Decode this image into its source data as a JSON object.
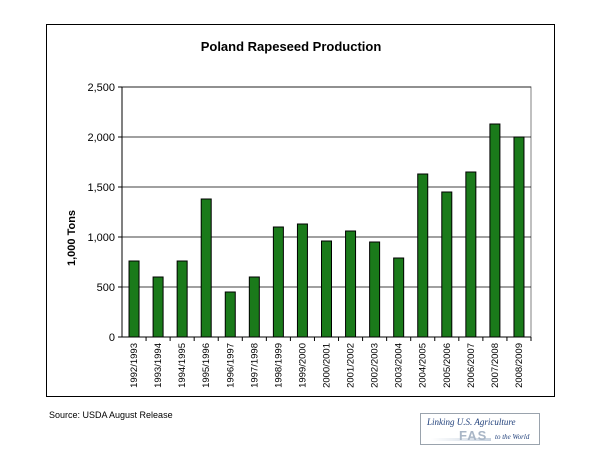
{
  "chart_data": {
    "type": "bar",
    "title": "Poland Rapeseed Production",
    "xlabel": "",
    "ylabel": "1,000 Tons",
    "ylim": [
      0,
      2500
    ],
    "yticks": [
      0,
      500,
      1000,
      1500,
      2000,
      2500
    ],
    "ytick_labels": [
      "0",
      "500",
      "1,000",
      "1,500",
      "2,000",
      "2,500"
    ],
    "grid": true,
    "legend": "none",
    "bar_color": "#1a7a1a",
    "categories": [
      "1992/1993",
      "1993/1994",
      "1994/1995",
      "1995/1996",
      "1996/1997",
      "1997/1998",
      "1998/1999",
      "1999/2000",
      "2000/2001",
      "2001/2002",
      "2002/2003",
      "2003/2004",
      "2004/2005",
      "2005/2006",
      "2006/2007",
      "2007/2008",
      "2008/2009"
    ],
    "values": [
      760,
      600,
      760,
      1380,
      450,
      600,
      1100,
      1130,
      960,
      1060,
      950,
      790,
      1630,
      1450,
      1650,
      2130,
      2000
    ]
  },
  "footer": {
    "source": "Source: USDA August Release"
  },
  "logo": {
    "line1": "Linking U.S. Agriculture",
    "name": "FAS",
    "line2": "to the World"
  }
}
